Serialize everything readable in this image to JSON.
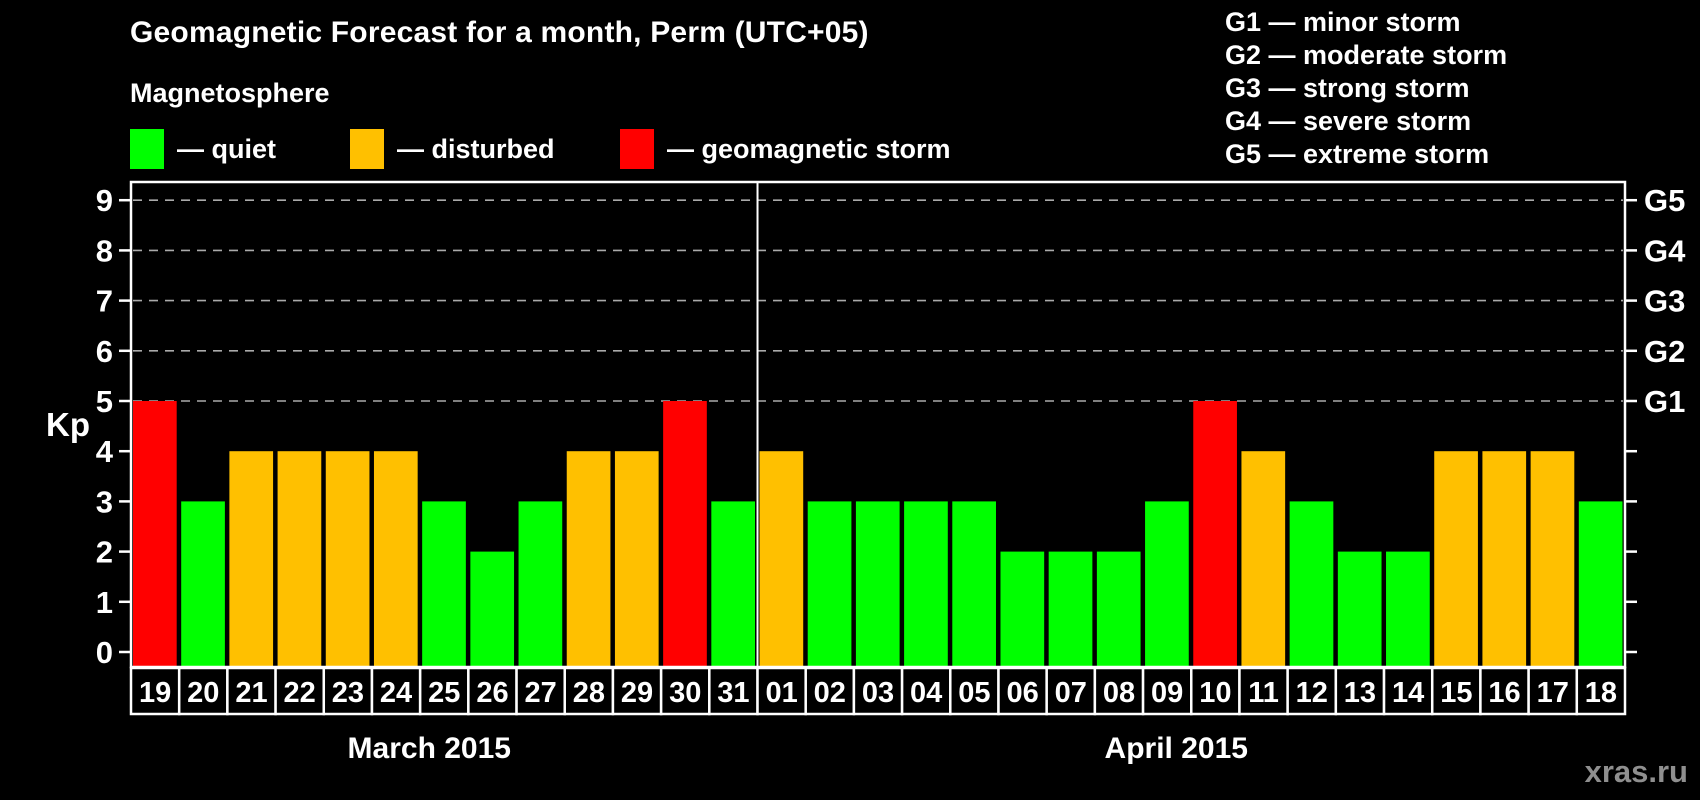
{
  "page": {
    "background": "#000000",
    "watermark": "xras.ru"
  },
  "header": {
    "title": "Geomagnetic Forecast for a month, Perm (UTC+05)"
  },
  "magnetosphere_legend": {
    "heading": "Magnetosphere",
    "items": [
      {
        "id": "quiet",
        "label": "— quiet",
        "color": "#00ff00"
      },
      {
        "id": "disturbed",
        "label": "— disturbed",
        "color": "#ffc000"
      },
      {
        "id": "storm",
        "label": "— geomagnetic storm",
        "color": "#ff0000"
      }
    ]
  },
  "storm_scale_legend": [
    "G1 — minor storm",
    "G2 — moderate storm",
    "G3 — strong storm",
    "G4 — severe storm",
    "G5 — extreme storm"
  ],
  "chart_data": {
    "type": "bar",
    "title": "Geomagnetic Forecast for a month, Perm (UTC+05)",
    "ylabel": "Kp",
    "xlabel": "",
    "ylim": [
      0,
      9
    ],
    "y_ticks": [
      0,
      1,
      2,
      3,
      4,
      5,
      6,
      7,
      8,
      9
    ],
    "gridlines_at": [
      5,
      6,
      7,
      8,
      9
    ],
    "grid_style": "dashed gray horizontal lines at storm levels G1–G5",
    "legend_position": "top-left",
    "right_axis": [
      {
        "value": 5,
        "label": "G1"
      },
      {
        "value": 6,
        "label": "G2"
      },
      {
        "value": 7,
        "label": "G3"
      },
      {
        "value": 8,
        "label": "G4"
      },
      {
        "value": 9,
        "label": "G5"
      }
    ],
    "status_colors": {
      "quiet": "#00ff00",
      "disturbed": "#ffc000",
      "storm": "#ff0000"
    },
    "months": [
      {
        "label": "March 2015",
        "days": [
          "19",
          "20",
          "21",
          "22",
          "23",
          "24",
          "25",
          "26",
          "27",
          "28",
          "29",
          "30",
          "31"
        ],
        "values": [
          5,
          3,
          4,
          4,
          4,
          4,
          3,
          2,
          3,
          4,
          4,
          5,
          3
        ],
        "status": [
          "storm",
          "quiet",
          "disturbed",
          "disturbed",
          "disturbed",
          "disturbed",
          "quiet",
          "quiet",
          "quiet",
          "disturbed",
          "disturbed",
          "storm",
          "quiet"
        ]
      },
      {
        "label": "April 2015",
        "days": [
          "01",
          "02",
          "03",
          "04",
          "05",
          "06",
          "07",
          "08",
          "09",
          "10",
          "11",
          "12",
          "13",
          "14",
          "15",
          "16",
          "17",
          "18"
        ],
        "values": [
          4,
          3,
          3,
          3,
          3,
          2,
          2,
          2,
          3,
          5,
          4,
          3,
          2,
          2,
          4,
          4,
          4,
          3
        ],
        "status": [
          "disturbed",
          "quiet",
          "quiet",
          "quiet",
          "quiet",
          "quiet",
          "quiet",
          "quiet",
          "quiet",
          "storm",
          "disturbed",
          "quiet",
          "quiet",
          "quiet",
          "disturbed",
          "disturbed",
          "disturbed",
          "quiet"
        ]
      }
    ]
  }
}
